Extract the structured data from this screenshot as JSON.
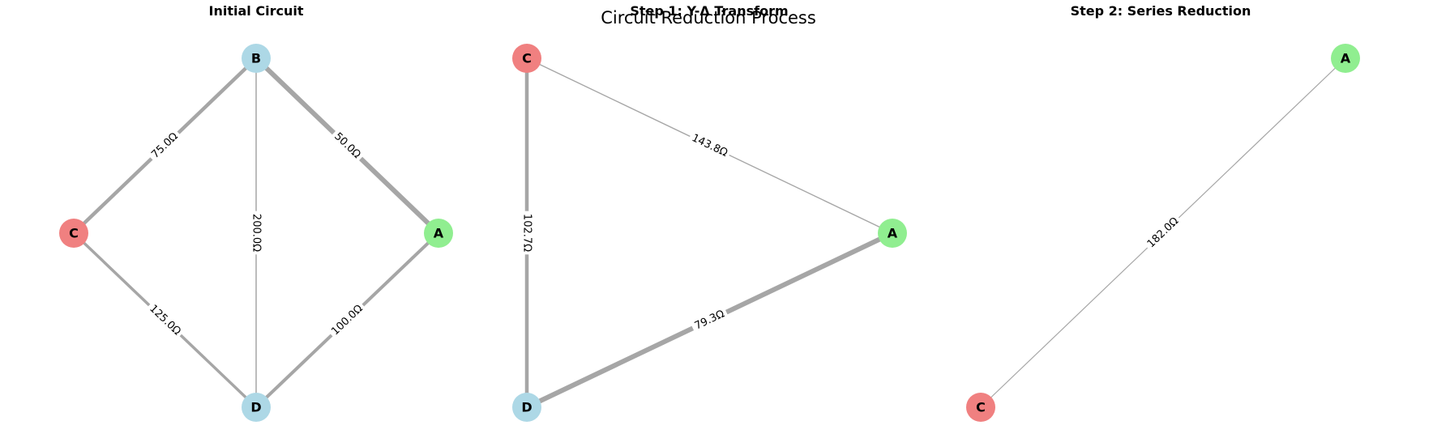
{
  "figure": {
    "title": "Circuit Reduction Process"
  },
  "colors": {
    "edge": "#a6a6a6",
    "node_red": "#f08080",
    "node_blue": "#add8e6",
    "node_green": "#90ee90",
    "label_bg": "#ffffff"
  },
  "panels": [
    {
      "title": "Initial Circuit",
      "nodes": [
        {
          "id": "B",
          "color": "node_blue"
        },
        {
          "id": "C",
          "color": "node_red"
        },
        {
          "id": "A",
          "color": "node_green"
        },
        {
          "id": "D",
          "color": "node_blue"
        }
      ],
      "edges": [
        {
          "from": "B",
          "to": "C",
          "label": "75.0Ω",
          "resistance": 75.0
        },
        {
          "from": "B",
          "to": "A",
          "label": "50.0Ω",
          "resistance": 50.0
        },
        {
          "from": "B",
          "to": "D",
          "label": "200.0Ω",
          "resistance": 200.0
        },
        {
          "from": "C",
          "to": "D",
          "label": "125.0Ω",
          "resistance": 125.0
        },
        {
          "from": "A",
          "to": "D",
          "label": "100.0Ω",
          "resistance": 100.0
        }
      ]
    },
    {
      "title": "Step 1: Y-Δ Transform",
      "nodes": [
        {
          "id": "C",
          "color": "node_red"
        },
        {
          "id": "A",
          "color": "node_green"
        },
        {
          "id": "D",
          "color": "node_blue"
        }
      ],
      "edges": [
        {
          "from": "C",
          "to": "A",
          "label": "143.8Ω",
          "resistance": 143.8
        },
        {
          "from": "C",
          "to": "D",
          "label": "102.7Ω",
          "resistance": 102.7
        },
        {
          "from": "D",
          "to": "A",
          "label": "79.3Ω",
          "resistance": 79.3
        }
      ]
    },
    {
      "title": "Step 2: Series Reduction",
      "nodes": [
        {
          "id": "A",
          "color": "node_green"
        },
        {
          "id": "C",
          "color": "node_red"
        }
      ],
      "edges": [
        {
          "from": "C",
          "to": "A",
          "label": "182.0Ω",
          "resistance": 182.0
        }
      ]
    }
  ]
}
